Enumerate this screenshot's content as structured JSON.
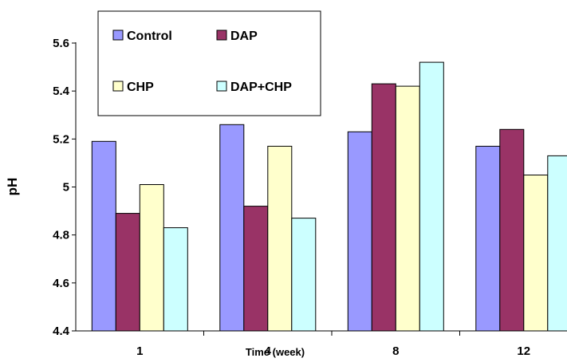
{
  "chart_data": {
    "type": "bar",
    "xlabel": "Time (week)",
    "ylabel": "pH",
    "categories": [
      "1",
      "4",
      "8",
      "12"
    ],
    "ylim": [
      4.4,
      5.6
    ],
    "yticks": [
      "4.4",
      "4.6",
      "4.8",
      "5",
      "5.2",
      "5.4",
      "5.6"
    ],
    "grid": false,
    "legend_position": "top-left",
    "series": [
      {
        "name": "Control",
        "color": "#9999ff",
        "values": [
          5.19,
          5.26,
          5.23,
          5.17
        ]
      },
      {
        "name": "DAP",
        "color": "#993366",
        "values": [
          4.89,
          4.92,
          5.43,
          5.24
        ]
      },
      {
        "name": "CHP",
        "color": "#ffffcc",
        "values": [
          5.01,
          5.17,
          5.42,
          5.05
        ]
      },
      {
        "name": "DAP+CHP",
        "color": "#ccffff",
        "values": [
          4.83,
          4.87,
          5.52,
          5.13
        ]
      }
    ]
  }
}
